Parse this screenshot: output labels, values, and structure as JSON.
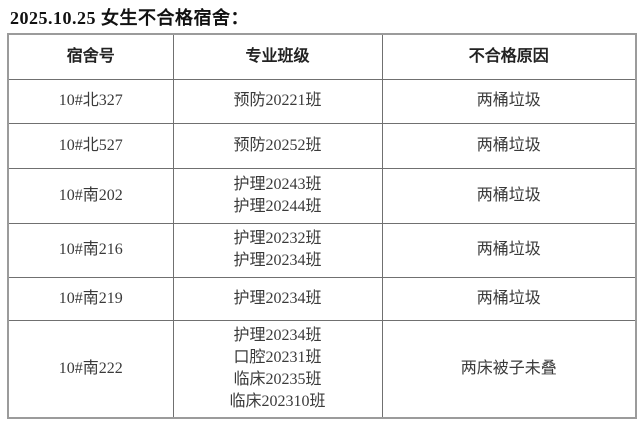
{
  "page": {
    "title": "2025.10.25 女生不合格宿舍："
  },
  "table": {
    "headers": {
      "dorm": "宿舍号",
      "classes": "专业班级",
      "reason": "不合格原因"
    },
    "rows": [
      {
        "dorm": "10#北327",
        "classes": [
          "预防20221班"
        ],
        "reason": "两桶垃圾"
      },
      {
        "dorm": "10#北527",
        "classes": [
          "预防20252班"
        ],
        "reason": "两桶垃圾"
      },
      {
        "dorm": "10#南202",
        "classes": [
          "护理20243班",
          "护理20244班"
        ],
        "reason": "两桶垃圾"
      },
      {
        "dorm": "10#南216",
        "classes": [
          "护理20232班",
          "护理20234班"
        ],
        "reason": "两桶垃圾"
      },
      {
        "dorm": "10#南219",
        "classes": [
          "护理20234班"
        ],
        "reason": "两桶垃圾"
      },
      {
        "dorm": "10#南222",
        "classes": [
          "护理20234班",
          "口腔20231班",
          "临床20235班",
          "临床202310班"
        ],
        "reason": "两床被子未叠"
      }
    ]
  },
  "colors": {
    "border_outer": "#9b9b9b",
    "border_inner": "#707070",
    "title_text": "#111111",
    "header_text": "#222222",
    "cell_text": "#3a3a3a",
    "background": "#ffffff"
  }
}
